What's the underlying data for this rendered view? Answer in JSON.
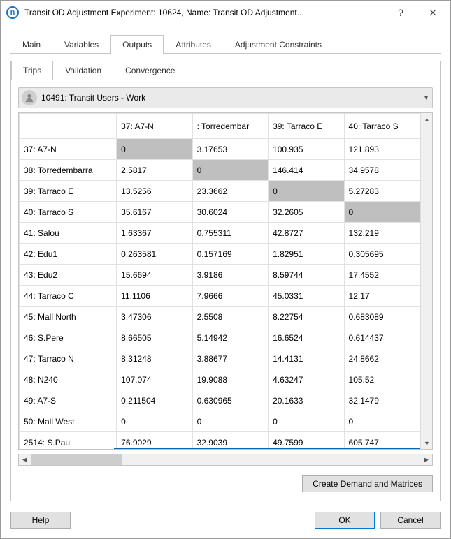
{
  "window": {
    "title": "Transit OD Adjustment Experiment: 10624, Name: Transit OD Adjustment..."
  },
  "tabs": {
    "outer": [
      "Main",
      "Variables",
      "Outputs",
      "Attributes",
      "Adjustment Constraints"
    ],
    "outer_active_index": 2,
    "inner": [
      "Trips",
      "Validation",
      "Convergence"
    ],
    "inner_active_index": 0
  },
  "selector": {
    "label": "10491: Transit Users - Work"
  },
  "table": {
    "columns": [
      "37: A7-N",
      ": Torredembar",
      "39: Tarraco E",
      "40: Tarraco S"
    ],
    "rows": [
      {
        "label": "37: A7-N",
        "cells": [
          "0",
          "3.17653",
          "100.935",
          "121.893"
        ],
        "diag": 0
      },
      {
        "label": "38: Torredembarra",
        "cells": [
          "2.5817",
          "0",
          "146.414",
          "34.9578"
        ],
        "diag": 1
      },
      {
        "label": "39: Tarraco E",
        "cells": [
          "13.5256",
          "23.3662",
          "0",
          "5.27283"
        ],
        "diag": 2
      },
      {
        "label": "40: Tarraco S",
        "cells": [
          "35.6167",
          "30.6024",
          "32.2605",
          "0"
        ],
        "diag": 3
      },
      {
        "label": "41: Salou",
        "cells": [
          "1.63367",
          "0.755311",
          "42.8727",
          "132.219"
        ],
        "diag": -1
      },
      {
        "label": "42: Edu1",
        "cells": [
          "0.263581",
          "0.157169",
          "1.82951",
          "0.305695"
        ],
        "diag": -1
      },
      {
        "label": "43: Edu2",
        "cells": [
          "15.6694",
          "3.9186",
          "8.59744",
          "17.4552"
        ],
        "diag": -1
      },
      {
        "label": "44: Tarraco C",
        "cells": [
          "11.1106",
          "7.9666",
          "45.0331",
          "12.17"
        ],
        "diag": -1
      },
      {
        "label": "45: Mall North",
        "cells": [
          "3.47306",
          "2.5508",
          "8.22754",
          "0.683089"
        ],
        "diag": -1
      },
      {
        "label": "46: S.Pere",
        "cells": [
          "8.66505",
          "5.14942",
          "16.6524",
          "0.614437"
        ],
        "diag": -1
      },
      {
        "label": "47: Tarraco N",
        "cells": [
          "8.31248",
          "3.88677",
          "14.4131",
          "24.8662"
        ],
        "diag": -1
      },
      {
        "label": "48: N240",
        "cells": [
          "107.074",
          "19.9088",
          "4.63247",
          "105.52"
        ],
        "diag": -1
      },
      {
        "label": "49: A7-S",
        "cells": [
          "0.211504",
          "0.630965",
          "20.1633",
          "32.1479"
        ],
        "diag": -1
      },
      {
        "label": "50: Mall West",
        "cells": [
          "0",
          "0",
          "0",
          "0"
        ],
        "diag": -1
      },
      {
        "label": "2514: S.Pau",
        "cells": [
          "76.9029",
          "32.9039",
          "49.7599",
          "605.747"
        ],
        "diag": -1
      }
    ],
    "highlight_color": "#0a64ad",
    "diag_color": "#bfbfbf"
  },
  "buttons": {
    "create": "Create Demand and Matrices",
    "help": "Help",
    "ok": "OK",
    "cancel": "Cancel"
  }
}
